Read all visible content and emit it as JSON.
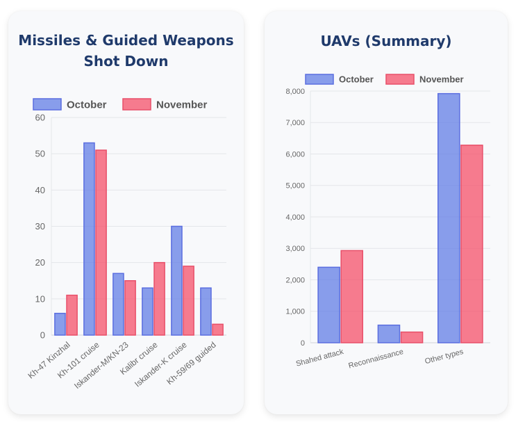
{
  "colors": {
    "october_fill": "rgba(99,125,230,0.75)",
    "october_stroke": "#5b6ee0",
    "november_fill": "rgba(245,80,105,0.75)",
    "november_stroke": "#e8506a"
  },
  "chart_data": [
    {
      "type": "bar",
      "title": "Missiles & Guided Weapons Shot Down",
      "categories": [
        "Kh-47 Kinzhal",
        "Kh-101 cruise",
        "Iskander-M/KN-23",
        "Kalibr cruise",
        "Iskander-K cruise",
        "Kh-59/69 guided"
      ],
      "series": [
        {
          "name": "October",
          "values": [
            6,
            53,
            17,
            13,
            30,
            13
          ]
        },
        {
          "name": "November",
          "values": [
            11,
            51,
            15,
            20,
            19,
            3
          ]
        }
      ],
      "ylim": [
        0,
        60
      ],
      "yticks": [
        0,
        10,
        20,
        30,
        40,
        50,
        60
      ],
      "ytick_labels": [
        "0",
        "10",
        "20",
        "30",
        "40",
        "50",
        "60"
      ],
      "legend": "top",
      "grid": true
    },
    {
      "type": "bar",
      "title": "UAVs (Summary)",
      "categories": [
        "Shahed attack",
        "Reconnaissance",
        "Other types"
      ],
      "series": [
        {
          "name": "October",
          "values": [
            2400,
            560,
            7920
          ]
        },
        {
          "name": "November",
          "values": [
            2930,
            340,
            6280
          ]
        }
      ],
      "ylim": [
        0,
        8000
      ],
      "yticks": [
        0,
        1000,
        2000,
        3000,
        4000,
        5000,
        6000,
        7000,
        8000
      ],
      "ytick_labels": [
        "0",
        "1,000",
        "2,000",
        "3,000",
        "4,000",
        "5,000",
        "6,000",
        "7,000",
        "8,000"
      ],
      "legend": "top",
      "grid": true
    }
  ]
}
